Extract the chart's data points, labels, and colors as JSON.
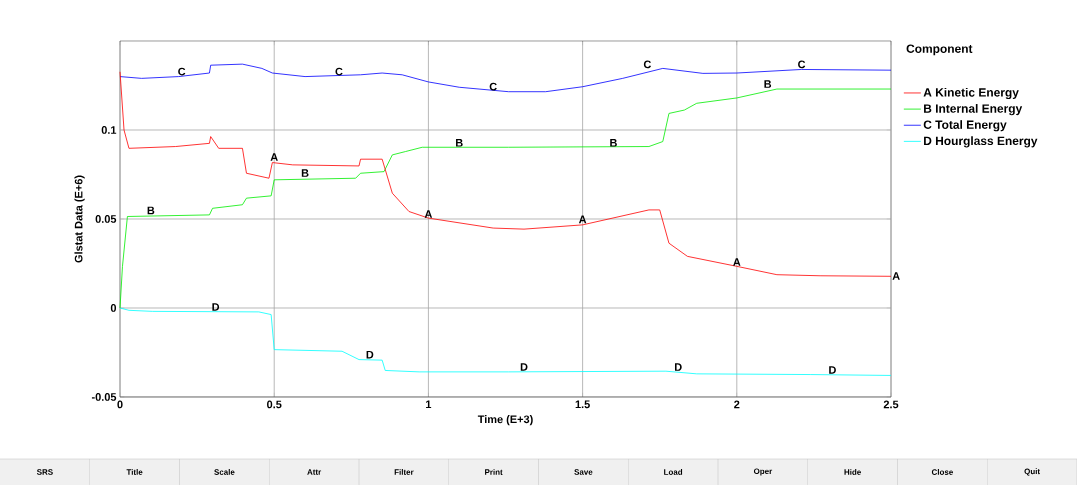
{
  "chart_data": {
    "type": "line",
    "xlabel": "Time (E+3)",
    "ylabel": "Glstat Data (E+6)",
    "legend_title": "Component",
    "xlim": [
      0,
      2.5
    ],
    "ylim": [
      -0.05,
      0.15
    ],
    "xticks": [
      0,
      0.5,
      1,
      1.5,
      2,
      2.5
    ],
    "yticks": [
      -0.05,
      0,
      0.05,
      0.1
    ],
    "grid": true,
    "legend": "top right",
    "series": [
      {
        "name": "A Kinetic Energy",
        "color": "#ff0000",
        "x": [
          0,
          0.013,
          0.029,
          0.18,
          0.29,
          0.294,
          0.32,
          0.397,
          0.41,
          0.483,
          0.494,
          0.56,
          0.775,
          0.78,
          0.85,
          0.883,
          0.937,
          1.0,
          1.21,
          1.31,
          1.5,
          1.715,
          1.75,
          1.78,
          1.84,
          2.0,
          2.13,
          2.27,
          2.5
        ],
        "values": [
          0.1327,
          0.1,
          0.0897,
          0.0907,
          0.0925,
          0.0963,
          0.0897,
          0.0897,
          0.0757,
          0.0729,
          0.0817,
          0.0804,
          0.0798,
          0.0836,
          0.0836,
          0.0645,
          0.0542,
          0.0505,
          0.0449,
          0.0443,
          0.0467,
          0.0551,
          0.0551,
          0.0364,
          0.029,
          0.0234,
          0.0187,
          0.0181,
          0.0178
        ]
      },
      {
        "name": "B Internal Energy",
        "color": "#00ee00",
        "x": [
          0,
          0.008,
          0.024,
          0.29,
          0.3,
          0.397,
          0.41,
          0.49,
          0.5,
          0.764,
          0.78,
          0.856,
          0.883,
          0.926,
          0.98,
          1.26,
          1.715,
          1.76,
          1.78,
          1.83,
          1.87,
          2.0,
          2.13,
          2.5
        ],
        "values": [
          0,
          0.0234,
          0.0514,
          0.0523,
          0.056,
          0.058,
          0.0617,
          0.063,
          0.072,
          0.0729,
          0.0757,
          0.0766,
          0.086,
          0.0879,
          0.0903,
          0.0903,
          0.0907,
          0.0935,
          0.1093,
          0.1112,
          0.115,
          0.118,
          0.123,
          0.123
        ]
      },
      {
        "name": "C Total Energy",
        "color": "#0000ff",
        "x": [
          0,
          0.07,
          0.19,
          0.29,
          0.294,
          0.397,
          0.46,
          0.494,
          0.6,
          0.78,
          0.85,
          0.915,
          1.0,
          1.1,
          1.26,
          1.38,
          1.5,
          1.63,
          1.76,
          1.89,
          2.0,
          2.21,
          2.5
        ],
        "values": [
          0.13,
          0.129,
          0.13,
          0.132,
          0.1364,
          0.137,
          0.1346,
          0.132,
          0.13,
          0.131,
          0.132,
          0.131,
          0.127,
          0.124,
          0.1215,
          0.1215,
          0.1243,
          0.129,
          0.1346,
          0.1318,
          0.132,
          0.134,
          0.1336
        ]
      },
      {
        "name": "D Hourglass Energy",
        "color": "#00ffff",
        "x": [
          0,
          0.029,
          0.105,
          0.45,
          0.49,
          0.5,
          0.72,
          0.775,
          0.85,
          0.86,
          0.97,
          1.26,
          1.77,
          1.87,
          2.24,
          2.5
        ],
        "values": [
          0,
          -0.0013,
          -0.0019,
          -0.0022,
          -0.0037,
          -0.0234,
          -0.0243,
          -0.029,
          -0.0293,
          -0.0351,
          -0.0359,
          -0.0359,
          -0.0355,
          -0.037,
          -0.0374,
          -0.0379
        ]
      }
    ],
    "annotations": [
      {
        "text": "A",
        "x": 0.5,
        "y": 0.082
      },
      {
        "text": "A",
        "x": 1.0,
        "y": 0.05
      },
      {
        "text": "A",
        "x": 1.5,
        "y": 0.047
      },
      {
        "text": "A",
        "x": 2.0,
        "y": 0.023
      },
      {
        "text": "A",
        "x": 2.5,
        "y": 0.018
      },
      {
        "text": "B",
        "x": 0.1,
        "y": 0.052
      },
      {
        "text": "B",
        "x": 0.6,
        "y": 0.073
      },
      {
        "text": "B",
        "x": 1.1,
        "y": 0.09
      },
      {
        "text": "B",
        "x": 1.6,
        "y": 0.09
      },
      {
        "text": "B",
        "x": 2.1,
        "y": 0.123
      },
      {
        "text": "C",
        "x": 0.2,
        "y": 0.13
      },
      {
        "text": "C",
        "x": 0.71,
        "y": 0.13
      },
      {
        "text": "C",
        "x": 1.21,
        "y": 0.1215
      },
      {
        "text": "C",
        "x": 1.71,
        "y": 0.134
      },
      {
        "text": "C",
        "x": 2.21,
        "y": 0.134
      },
      {
        "text": "D",
        "x": 0.31,
        "y": -0.0022
      },
      {
        "text": "D",
        "x": 0.81,
        "y": -0.029
      },
      {
        "text": "D",
        "x": 1.31,
        "y": -0.0359
      },
      {
        "text": "D",
        "x": 1.81,
        "y": -0.036
      },
      {
        "text": "D",
        "x": 2.31,
        "y": -0.0376
      },
      "SRS",
      "Title",
      "Scale",
      "Attr",
      "Filter",
      "Print",
      "Save",
      "Load",
      "Oper",
      "Hide",
      "Close",
      "Quit"
    ]
  }
}
